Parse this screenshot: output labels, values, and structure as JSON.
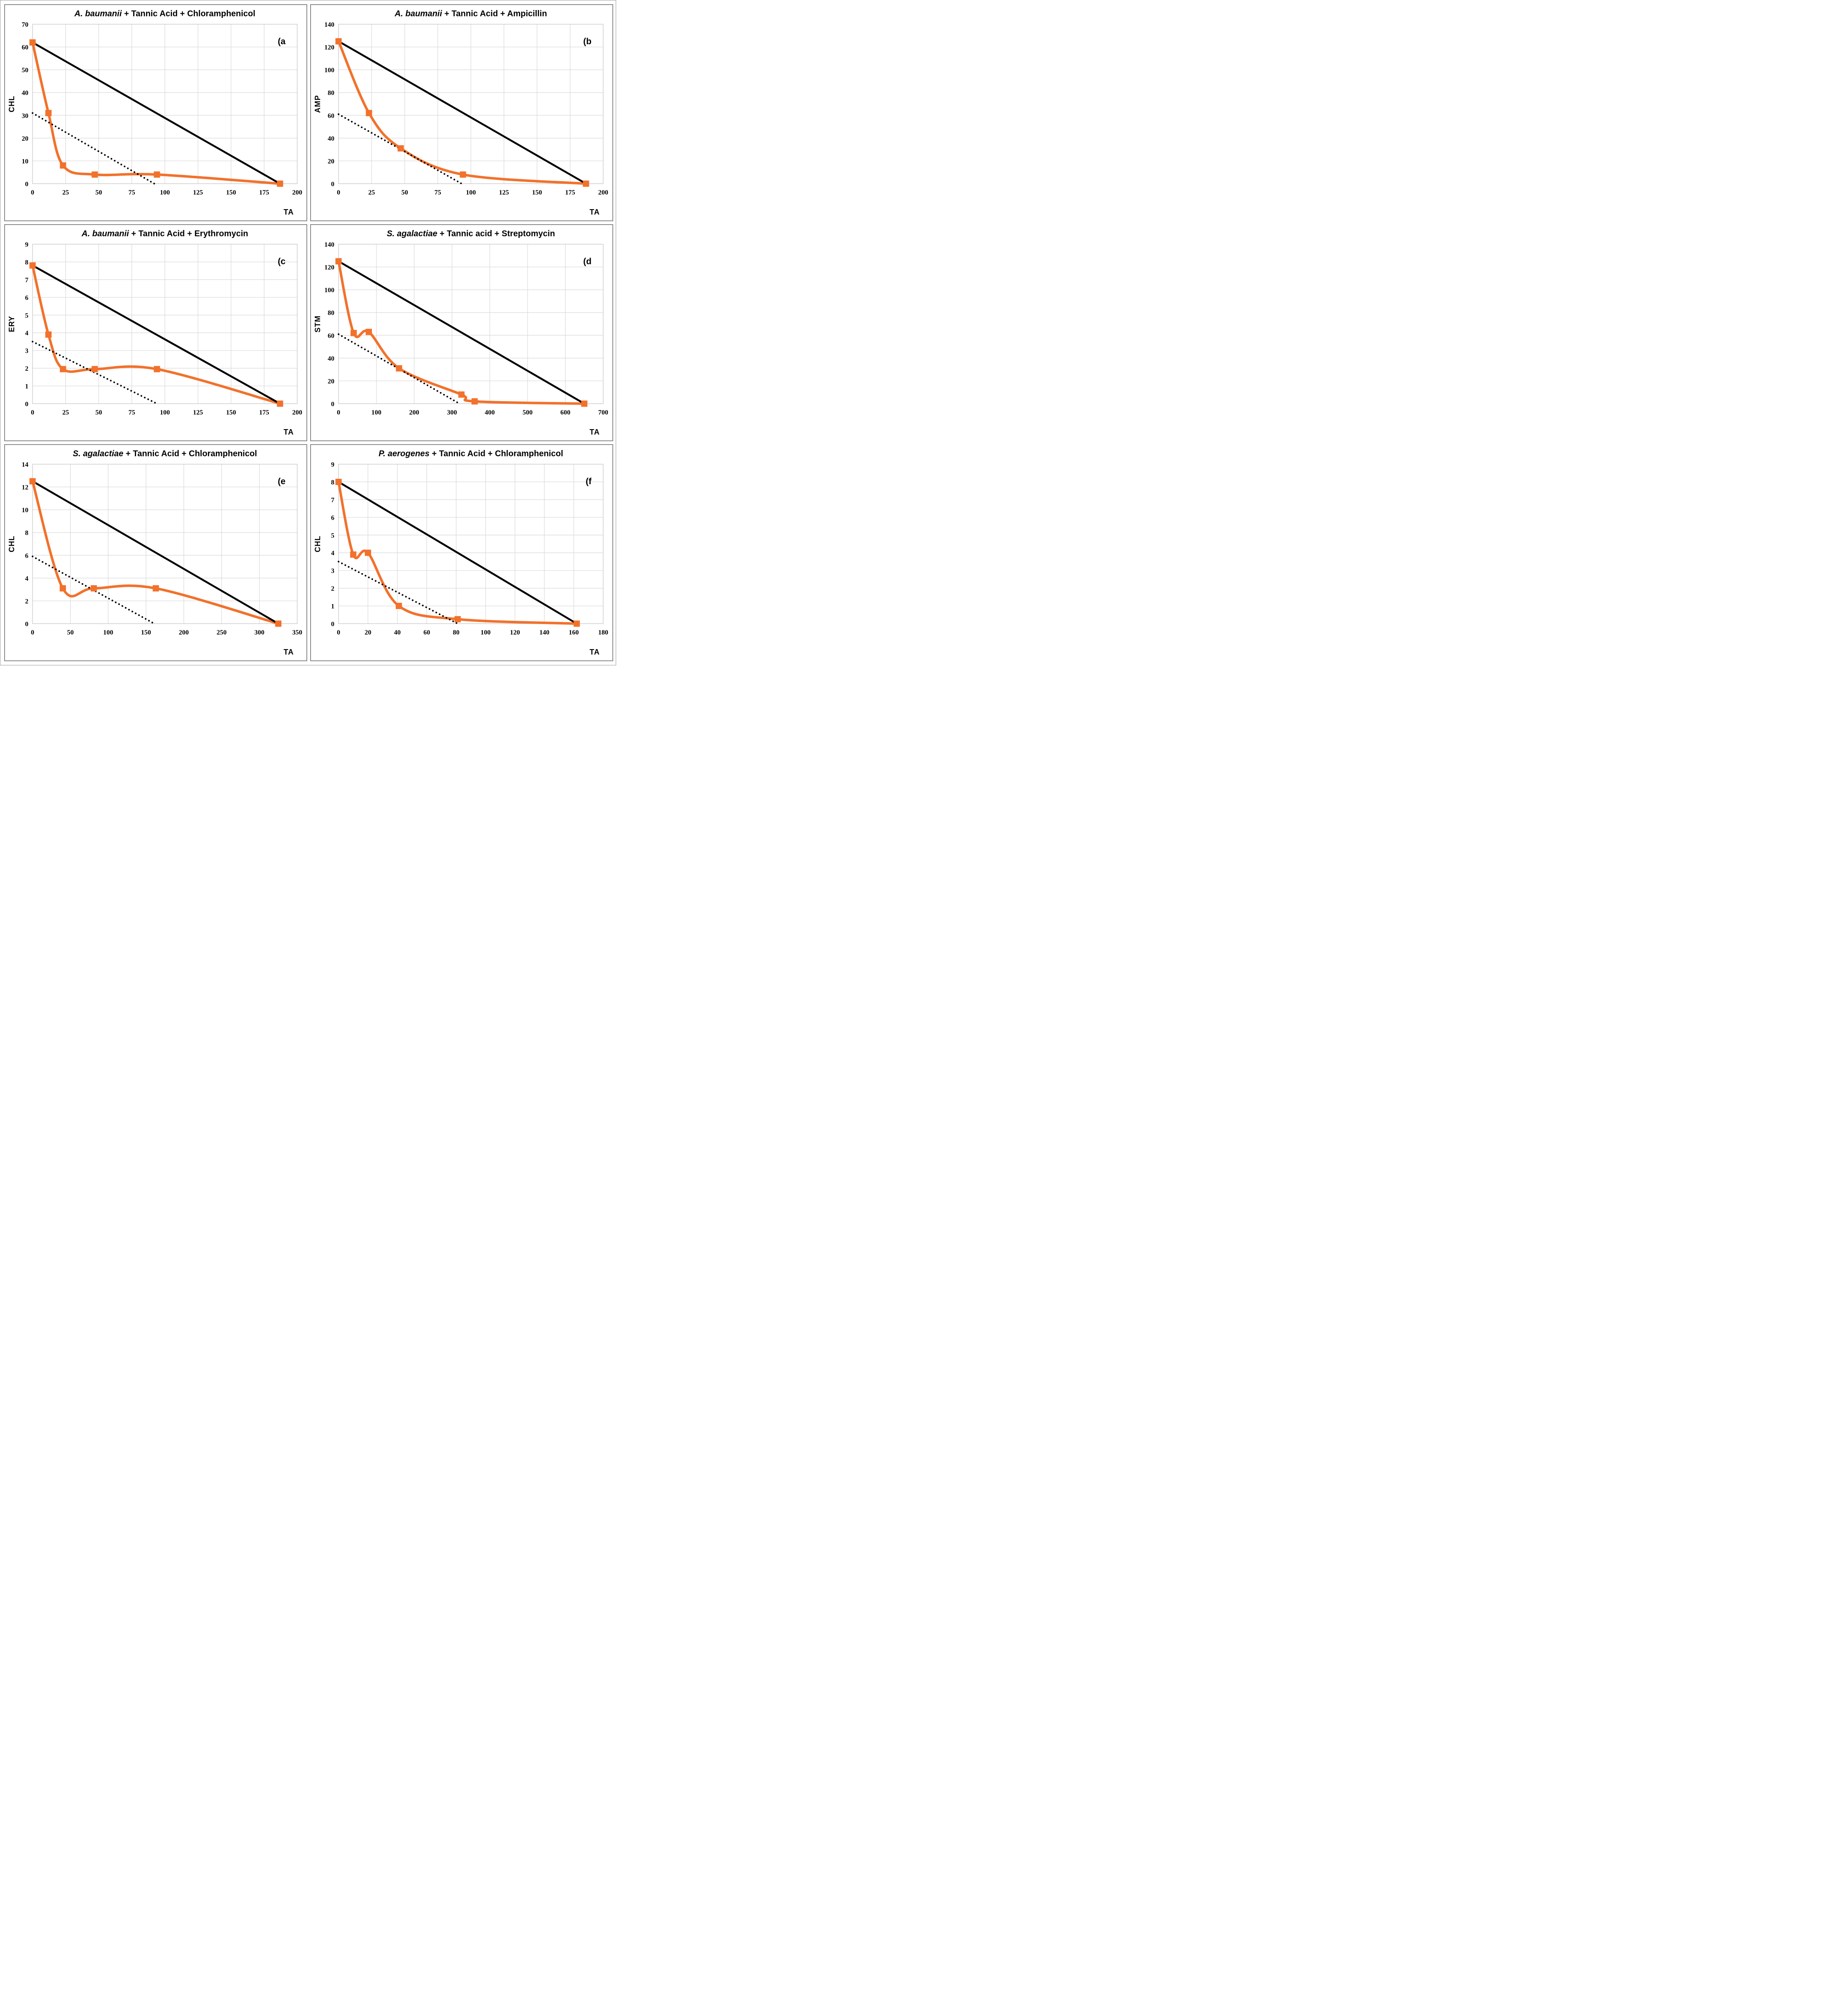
{
  "figure": {
    "description": "Isobologram panels of tannic acid combined with antibiotics against bacterial strains",
    "x_axis_label": "TA",
    "accent_color": "#F2712B",
    "line_color": "#000000",
    "grid_color": "#D9D9D9",
    "panel_border_color": "#8C8C8C",
    "panels": [
      {
        "id": "a",
        "letter": "(a",
        "title_species": "A. baumanii",
        "title_rest": " + Tannic Acid + Chloramphenicol",
        "ylabel": "CHL",
        "xlabel": "TA"
      },
      {
        "id": "b",
        "letter": "(b",
        "title_species": "A. baumanii",
        "title_rest": " + Tannic Acid + Ampicillin",
        "ylabel": "AMP",
        "xlabel": "TA"
      },
      {
        "id": "c",
        "letter": "(c",
        "title_species": "A. baumanii",
        "title_rest": " + Tannic Acid + Erythromycin",
        "ylabel": "ERY",
        "xlabel": "TA"
      },
      {
        "id": "d",
        "letter": "(d",
        "title_species": "S. agalactiae",
        "title_rest": " + Tannic acid + Streptomycin",
        "ylabel": "STM",
        "xlabel": "TA"
      },
      {
        "id": "e",
        "letter": "(e",
        "title_species": "S. agalactiae",
        "title_rest": " + Tannic Acid + Chloramphenicol",
        "ylabel": "CHL",
        "xlabel": "TA"
      },
      {
        "id": "f",
        "letter": "(f",
        "title_species": "P. aerogenes",
        "title_rest": " + Tannic Acid + Chloramphenicol",
        "ylabel": "CHL",
        "xlabel": "TA"
      }
    ]
  },
  "chart_data": [
    {
      "type": "line",
      "title": "A. baumanii + Tannic Acid + Chloramphenicol",
      "panel_label": "(a",
      "xlabel": "TA",
      "ylabel": "CHL",
      "xlim": [
        0,
        200
      ],
      "xtick_step": 25,
      "ylim": [
        0,
        70
      ],
      "ytick_step": 10,
      "grid": true,
      "legend": "none",
      "series": [
        {
          "name": "combination-isobole",
          "color": "#F2712B",
          "marker": "square",
          "smooth": true,
          "points": [
            [
              0,
              62
            ],
            [
              12,
              31
            ],
            [
              23,
              8
            ],
            [
              47,
              4
            ],
            [
              94,
              4
            ],
            [
              187,
              0
            ]
          ]
        },
        {
          "name": "additive-line",
          "color": "#000000",
          "style": "solid",
          "points": [
            [
              0,
              62
            ],
            [
              187,
              0
            ]
          ]
        },
        {
          "name": "synergy-threshold-line",
          "color": "#000000",
          "style": "dotted",
          "points": [
            [
              0,
              31
            ],
            [
              92,
              0
            ]
          ]
        }
      ]
    },
    {
      "type": "line",
      "title": "A. baumanii + Tannic Acid + Ampicillin",
      "panel_label": "(b",
      "xlabel": "TA",
      "ylabel": "AMP",
      "xlim": [
        0,
        200
      ],
      "xtick_step": 25,
      "ylim": [
        0,
        140
      ],
      "ytick_step": 20,
      "grid": true,
      "legend": "none",
      "series": [
        {
          "name": "combination-isobole",
          "color": "#F2712B",
          "marker": "square",
          "smooth": true,
          "points": [
            [
              0,
              125
            ],
            [
              23,
              62
            ],
            [
              47,
              31
            ],
            [
              94,
              8
            ],
            [
              187,
              0
            ]
          ]
        },
        {
          "name": "additive-line",
          "color": "#000000",
          "style": "solid",
          "points": [
            [
              0,
              125
            ],
            [
              187,
              0
            ]
          ]
        },
        {
          "name": "synergy-threshold-line",
          "color": "#000000",
          "style": "dotted",
          "points": [
            [
              0,
              61
            ],
            [
              93,
              0
            ]
          ]
        }
      ]
    },
    {
      "type": "line",
      "title": "A. baumanii + Tannic Acid + Erythromycin",
      "panel_label": "(c",
      "xlabel": "TA",
      "ylabel": "ERY",
      "xlim": [
        0,
        200
      ],
      "xtick_step": 25,
      "ylim": [
        0,
        9
      ],
      "ytick_step": 1,
      "grid": true,
      "legend": "none",
      "series": [
        {
          "name": "combination-isobole",
          "color": "#F2712B",
          "marker": "square",
          "smooth": true,
          "points": [
            [
              0,
              7.8
            ],
            [
              12,
              3.9
            ],
            [
              23,
              1.95
            ],
            [
              47,
              1.95
            ],
            [
              94,
              1.95
            ],
            [
              187,
              0
            ]
          ]
        },
        {
          "name": "additive-line",
          "color": "#000000",
          "style": "solid",
          "points": [
            [
              0,
              7.8
            ],
            [
              187,
              0
            ]
          ]
        },
        {
          "name": "synergy-threshold-line",
          "color": "#000000",
          "style": "dotted",
          "points": [
            [
              0,
              3.5
            ],
            [
              94,
              0
            ]
          ]
        }
      ]
    },
    {
      "type": "line",
      "title": "S. agalactiae + Tannic acid + Streptomycin",
      "panel_label": "(d",
      "xlabel": "TA",
      "ylabel": "STM",
      "xlim": [
        0,
        700
      ],
      "xtick_step": 100,
      "ylim": [
        0,
        140
      ],
      "ytick_step": 20,
      "grid": true,
      "legend": "none",
      "series": [
        {
          "name": "combination-isobole",
          "color": "#F2712B",
          "marker": "square",
          "smooth": true,
          "points": [
            [
              0,
              125
            ],
            [
              40,
              62
            ],
            [
              80,
              63
            ],
            [
              160,
              31
            ],
            [
              325,
              8
            ],
            [
              360,
              2
            ],
            [
              650,
              0
            ]
          ]
        },
        {
          "name": "additive-line",
          "color": "#000000",
          "style": "solid",
          "points": [
            [
              0,
              125
            ],
            [
              650,
              0
            ]
          ]
        },
        {
          "name": "synergy-threshold-line",
          "color": "#000000",
          "style": "dotted",
          "points": [
            [
              0,
              61
            ],
            [
              320,
              0
            ]
          ]
        }
      ]
    },
    {
      "type": "line",
      "title": "S. agalactiae + Tannic Acid + Chloramphenicol",
      "panel_label": "(e",
      "xlabel": "TA",
      "ylabel": "CHL",
      "xlim": [
        0,
        350
      ],
      "xtick_step": 50,
      "ylim": [
        0,
        14
      ],
      "ytick_step": 2,
      "grid": true,
      "legend": "none",
      "series": [
        {
          "name": "combination-isobole",
          "color": "#F2712B",
          "marker": "square",
          "smooth": true,
          "points": [
            [
              0,
              12.5
            ],
            [
              40,
              3.1
            ],
            [
              81,
              3.1
            ],
            [
              163,
              3.1
            ],
            [
              325,
              0
            ]
          ]
        },
        {
          "name": "additive-line",
          "color": "#000000",
          "style": "solid",
          "points": [
            [
              0,
              12.5
            ],
            [
              325,
              0
            ]
          ]
        },
        {
          "name": "synergy-threshold-line",
          "color": "#000000",
          "style": "dotted",
          "points": [
            [
              0,
              5.9
            ],
            [
              161,
              0
            ]
          ]
        }
      ]
    },
    {
      "type": "line",
      "title": "P. aerogenes + Tannic Acid + Chloramphenicol",
      "panel_label": "(f",
      "xlabel": "TA",
      "ylabel": "CHL",
      "xlim": [
        0,
        180
      ],
      "xtick_step": 20,
      "ylim": [
        0,
        9
      ],
      "ytick_step": 1,
      "grid": true,
      "legend": "none",
      "series": [
        {
          "name": "combination-isobole",
          "color": "#F2712B",
          "marker": "square",
          "smooth": true,
          "points": [
            [
              0,
              8
            ],
            [
              10,
              3.9
            ],
            [
              20,
              4
            ],
            [
              41,
              1
            ],
            [
              81,
              0.25
            ],
            [
              162,
              0
            ]
          ]
        },
        {
          "name": "additive-line",
          "color": "#000000",
          "style": "solid",
          "points": [
            [
              0,
              8
            ],
            [
              162,
              0
            ]
          ]
        },
        {
          "name": "synergy-threshold-line",
          "color": "#000000",
          "style": "dotted",
          "points": [
            [
              0,
              3.5
            ],
            [
              81,
              0
            ]
          ]
        }
      ]
    }
  ]
}
